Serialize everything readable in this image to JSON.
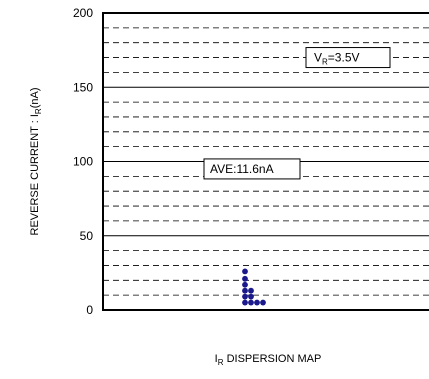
{
  "chart_data": {
    "type": "scatter",
    "ylabel": "REVERSE CURRENT : IR(nA)",
    "ylabel_parts": {
      "main": "REVERSE CURRENT : I",
      "sub": "R",
      "tail": "(nA)"
    },
    "xlabel": "IR DISPERSION MAP",
    "xlabel_parts": {
      "main": "I",
      "sub": "R",
      "tail": " DISPERSION MAP"
    },
    "ylim": [
      0,
      200
    ],
    "yticks": [
      "0",
      "50",
      "100",
      "150",
      "200"
    ],
    "grid": {
      "major_every": 50,
      "minor_every": 10
    },
    "annotations": {
      "condition": {
        "main": "V",
        "sub": "R",
        "tail": "=3.5V"
      },
      "average": "AVE:11.6nA"
    },
    "colors": {
      "points": "#1a1a8c",
      "axes": "#000000"
    },
    "points": [
      {
        "col": 0,
        "y": 5
      },
      {
        "col": 0,
        "y": 9
      },
      {
        "col": 0,
        "y": 13
      },
      {
        "col": 0,
        "y": 17
      },
      {
        "col": 0,
        "y": 21
      },
      {
        "col": 0,
        "y": 26
      },
      {
        "col": 1,
        "y": 5
      },
      {
        "col": 1,
        "y": 9
      },
      {
        "col": 1,
        "y": 13
      },
      {
        "col": 2,
        "y": 5
      },
      {
        "col": 3,
        "y": 5
      }
    ]
  }
}
